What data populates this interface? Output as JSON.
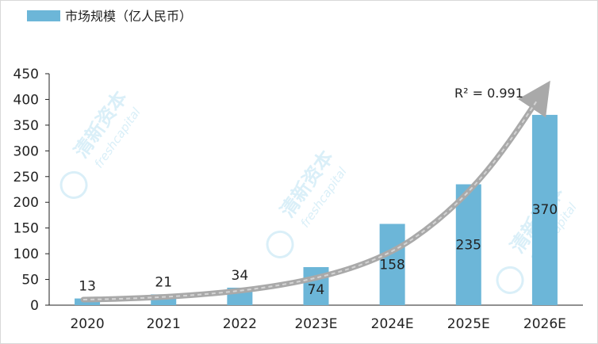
{
  "chart_data": {
    "type": "bar",
    "categories": [
      "2020",
      "2021",
      "2022",
      "2023E",
      "2024E",
      "2025E",
      "2026E"
    ],
    "series": [
      {
        "name": "市场规模（亿人民币）",
        "values": [
          13,
          21,
          34,
          74,
          158,
          235,
          370
        ],
        "color": "#6cb6d8"
      }
    ],
    "ylim": [
      0,
      450
    ],
    "yticks": [
      0,
      50,
      100,
      150,
      200,
      250,
      300,
      350,
      400,
      450
    ],
    "legend": "top-left",
    "grid": false,
    "annotation": "R² = 0.991",
    "trend_arrow_color": "#a9a9a9"
  },
  "watermark": {
    "cn": "清新资本",
    "en": "freshcapital"
  }
}
